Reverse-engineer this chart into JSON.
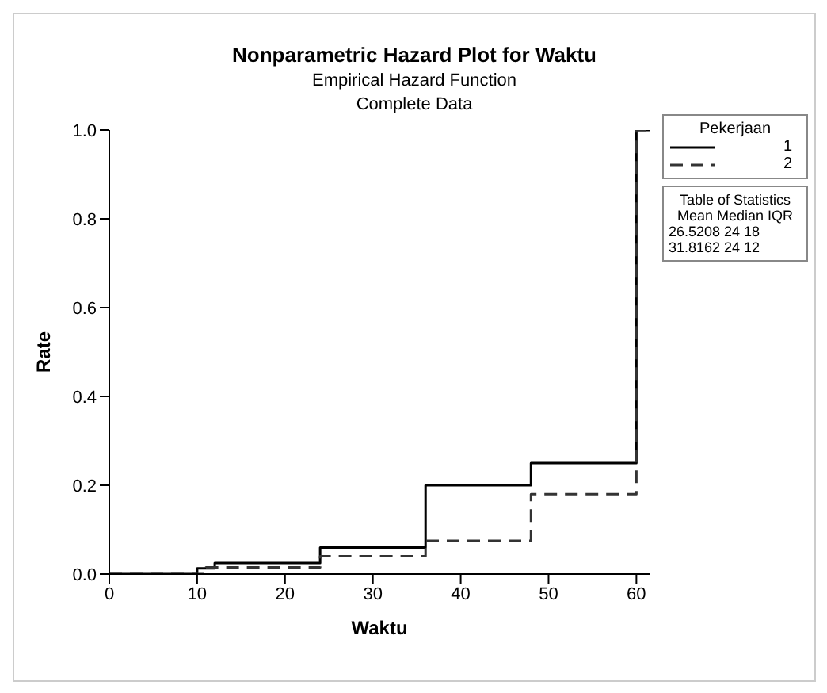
{
  "chart_data": {
    "type": "step",
    "title": "Nonparametric Hazard Plot for Waktu",
    "subtitle": "Empirical Hazard Function\nComplete Data",
    "xlabel": "Waktu",
    "ylabel": "Rate",
    "legend_title": "Pekerjaan",
    "xlim": [
      0,
      61.5
    ],
    "xticks": [
      0,
      10,
      20,
      30,
      40,
      50,
      60
    ],
    "ylim": [
      0,
      1
    ],
    "yticks": [
      {
        "value": 0,
        "label": "0.0"
      },
      {
        "value": 0.2,
        "label": "0.2"
      },
      {
        "value": 0.4,
        "label": "0.4"
      },
      {
        "value": 0.6,
        "label": "0.6"
      },
      {
        "value": 0.8,
        "label": "0.8"
      },
      {
        "value": 1,
        "label": "1.0"
      }
    ],
    "series": [
      {
        "name": "1",
        "color": "#000000",
        "line_style": "solid",
        "x": [
          0,
          10,
          12,
          24,
          36,
          48,
          60,
          61.5
        ],
        "values": [
          0,
          0.013,
          0.025,
          0.06,
          0.2,
          0.25,
          1,
          1
        ]
      },
      {
        "name": "2",
        "color": "#333333",
        "line_style": "dashed",
        "x": [
          0,
          11,
          24,
          36,
          48,
          60,
          61.5
        ],
        "values": [
          0,
          0.015,
          0.04,
          0.075,
          0.18,
          1,
          1
        ]
      }
    ],
    "grid": false,
    "legend": "top right",
    "marker": "none",
    "annotations": [
      "Table of Statistics",
      "Mean Median IQR",
      "26.5208 24 18",
      "31.8162 24 12"
    ]
  }
}
